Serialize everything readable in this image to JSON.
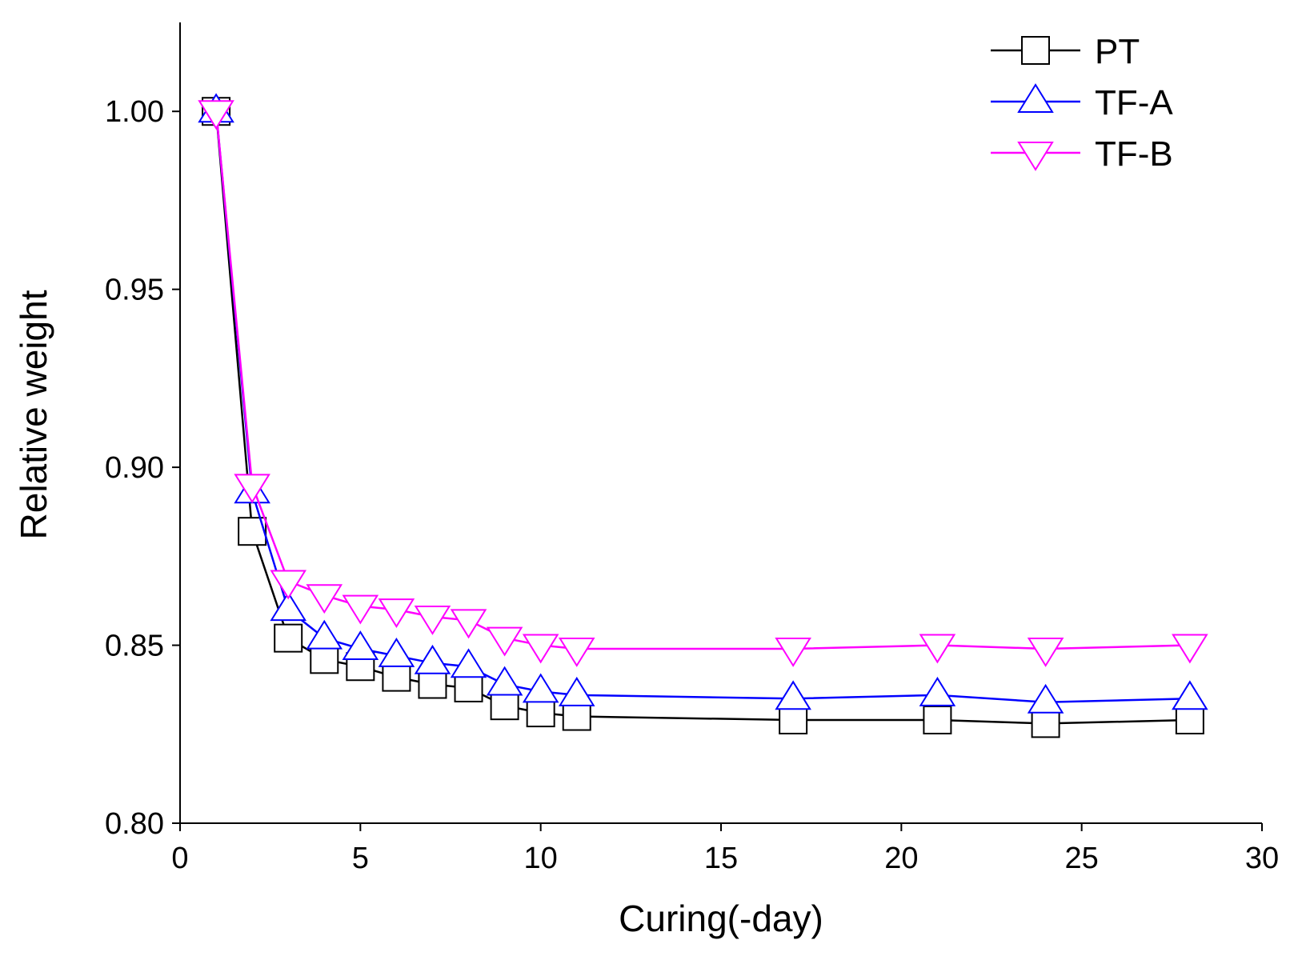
{
  "chart_data": {
    "type": "line",
    "title": "",
    "xlabel": "Curing(-day)",
    "ylabel": "Relative weight",
    "xlim": [
      0,
      30
    ],
    "ylim": [
      0.8,
      1.025
    ],
    "xticks": [
      0,
      5,
      10,
      15,
      20,
      25,
      30
    ],
    "xtick_labels": [
      "0",
      "5",
      "10",
      "15",
      "20",
      "25",
      "30"
    ],
    "yticks": [
      0.8,
      0.85,
      0.9,
      0.95,
      1.0
    ],
    "ytick_labels": [
      "0.80",
      "0.85",
      "0.90",
      "0.95",
      "1.00"
    ],
    "grid": false,
    "legend_position": "top-right",
    "x": [
      1,
      2,
      3,
      4,
      5,
      6,
      7,
      8,
      9,
      10,
      11,
      17,
      21,
      24,
      28
    ],
    "series": [
      {
        "name": "PT",
        "color": "#000000",
        "marker": "square",
        "values": [
          1.0,
          0.882,
          0.852,
          0.846,
          0.844,
          0.841,
          0.839,
          0.838,
          0.833,
          0.831,
          0.83,
          0.829,
          0.829,
          0.828,
          0.829
        ]
      },
      {
        "name": "TF-A",
        "color": "#0000ff",
        "marker": "triangle-up",
        "values": [
          1.0,
          0.893,
          0.86,
          0.852,
          0.849,
          0.847,
          0.845,
          0.844,
          0.839,
          0.837,
          0.836,
          0.835,
          0.836,
          0.834,
          0.835
        ]
      },
      {
        "name": "TF-B",
        "color": "#ff00ff",
        "marker": "triangle-down",
        "values": [
          1.0,
          0.895,
          0.868,
          0.864,
          0.861,
          0.86,
          0.858,
          0.857,
          0.852,
          0.85,
          0.849,
          0.849,
          0.85,
          0.849,
          0.85
        ]
      }
    ]
  }
}
